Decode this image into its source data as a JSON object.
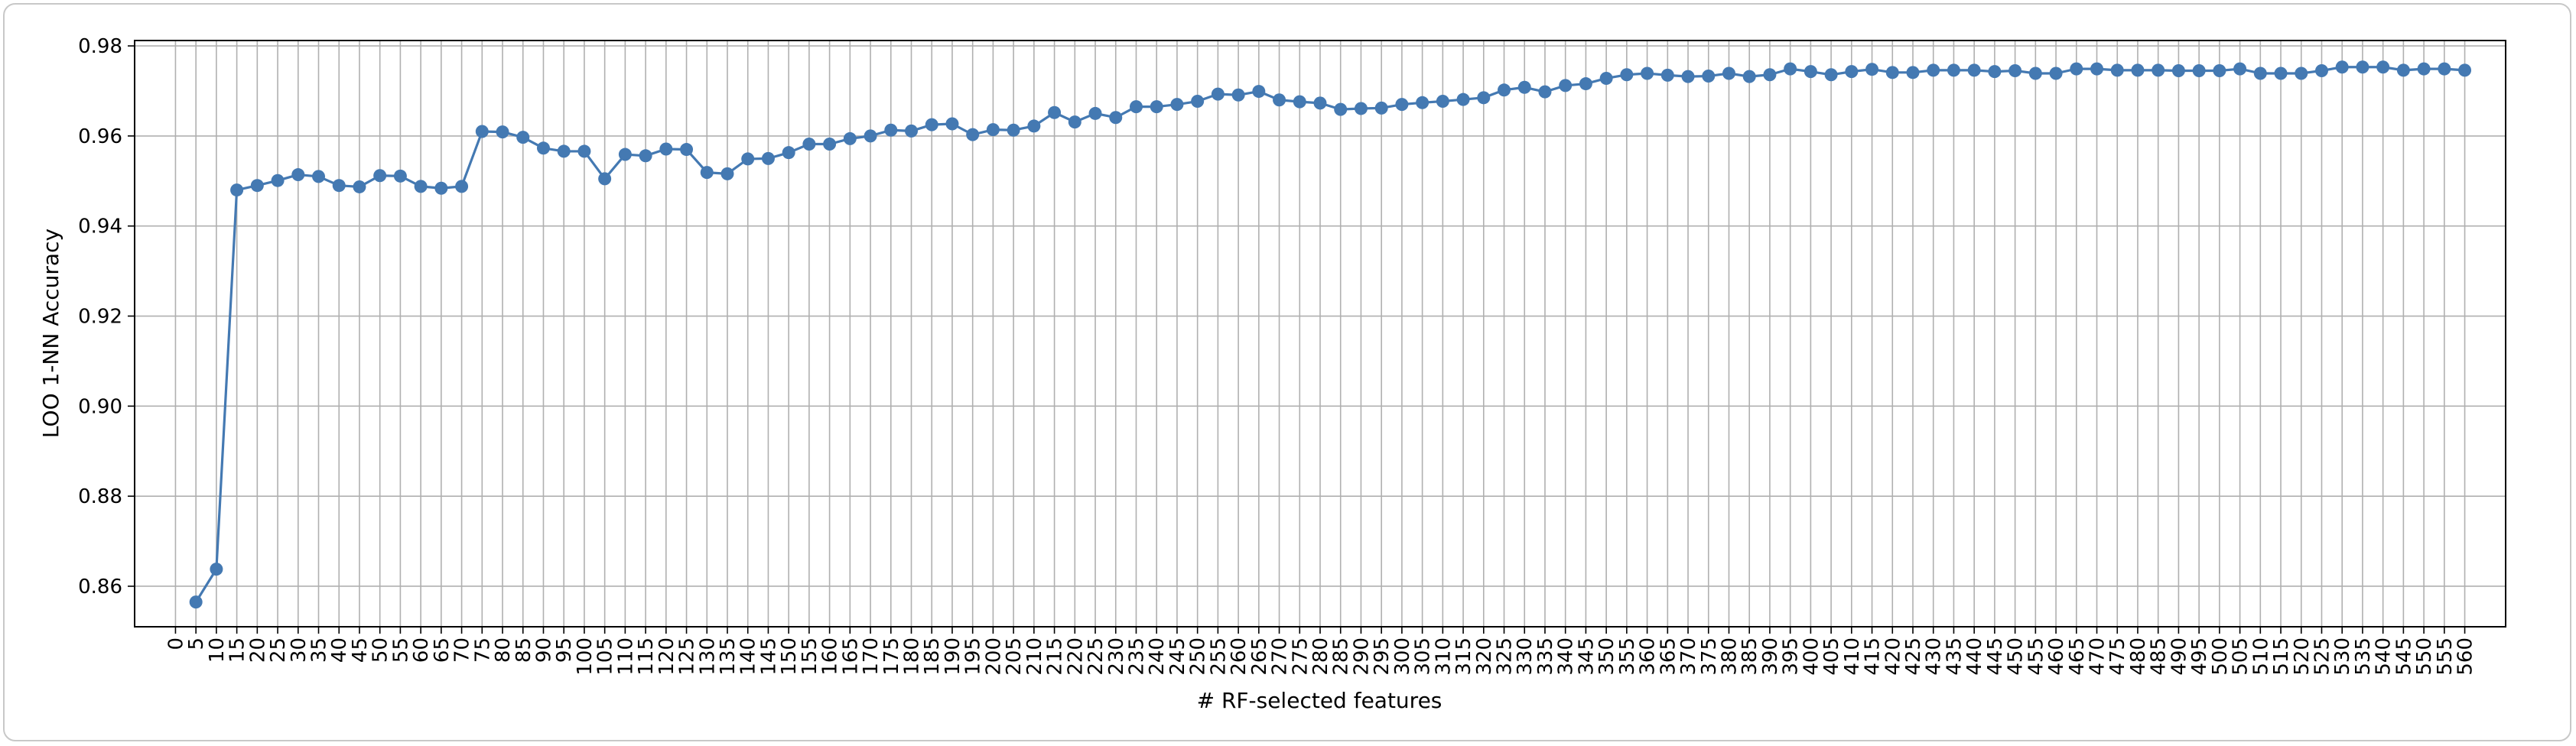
{
  "chart_data": {
    "type": "line",
    "title": "",
    "xlabel": "# RF-selected features",
    "ylabel": "LOO 1-NN Accuracy",
    "xlim": [
      -10,
      570
    ],
    "ylim": [
      0.851,
      0.9812
    ],
    "grid": true,
    "x_ticks": [
      0,
      5,
      10,
      15,
      20,
      25,
      30,
      35,
      40,
      45,
      50,
      55,
      60,
      65,
      70,
      75,
      80,
      85,
      90,
      95,
      100,
      105,
      110,
      115,
      120,
      125,
      130,
      135,
      140,
      145,
      150,
      155,
      160,
      165,
      170,
      175,
      180,
      185,
      190,
      195,
      200,
      205,
      210,
      215,
      220,
      225,
      230,
      235,
      240,
      245,
      250,
      255,
      260,
      265,
      270,
      275,
      280,
      285,
      290,
      295,
      300,
      305,
      310,
      315,
      320,
      325,
      330,
      335,
      340,
      345,
      350,
      355,
      360,
      365,
      370,
      375,
      380,
      385,
      390,
      395,
      400,
      405,
      410,
      415,
      420,
      425,
      430,
      435,
      440,
      445,
      450,
      455,
      460,
      465,
      470,
      475,
      480,
      485,
      490,
      495,
      500,
      505,
      510,
      515,
      520,
      525,
      530,
      535,
      540,
      545,
      550,
      555,
      560
    ],
    "y_ticks": [
      "0.86",
      "0.88",
      "0.90",
      "0.92",
      "0.94",
      "0.96",
      "0.98"
    ],
    "series": [
      {
        "color": "#4479b2",
        "marker": "circle",
        "x": [
          5,
          10,
          15,
          20,
          25,
          30,
          35,
          40,
          45,
          50,
          55,
          60,
          65,
          70,
          75,
          80,
          85,
          90,
          95,
          100,
          105,
          110,
          115,
          120,
          125,
          130,
          135,
          140,
          145,
          150,
          155,
          160,
          165,
          170,
          175,
          180,
          185,
          190,
          195,
          200,
          205,
          210,
          215,
          220,
          225,
          230,
          235,
          240,
          245,
          250,
          255,
          260,
          265,
          270,
          275,
          280,
          285,
          290,
          295,
          300,
          305,
          310,
          315,
          320,
          325,
          330,
          335,
          340,
          345,
          350,
          355,
          360,
          365,
          370,
          375,
          380,
          385,
          390,
          395,
          400,
          405,
          410,
          415,
          420,
          425,
          430,
          435,
          440,
          445,
          450,
          455,
          460,
          465,
          470,
          475,
          480,
          485,
          490,
          495,
          500,
          505,
          510,
          515,
          520,
          525,
          530,
          535,
          540,
          545,
          550,
          555,
          560
        ],
        "y": [
          0.8565,
          0.8638,
          0.948,
          0.949,
          0.9501,
          0.9514,
          0.951,
          0.949,
          0.9487,
          0.9512,
          0.9511,
          0.9488,
          0.9484,
          0.9488,
          0.961,
          0.9609,
          0.9597,
          0.9573,
          0.9566,
          0.9566,
          0.9505,
          0.9559,
          0.9556,
          0.9571,
          0.957,
          0.9519,
          0.9516,
          0.9549,
          0.955,
          0.9563,
          0.9582,
          0.9582,
          0.9594,
          0.96,
          0.9613,
          0.9611,
          0.9625,
          0.9627,
          0.9603,
          0.9614,
          0.9613,
          0.9622,
          0.9652,
          0.9631,
          0.965,
          0.9641,
          0.9665,
          0.9665,
          0.967,
          0.9677,
          0.9693,
          0.9691,
          0.9699,
          0.968,
          0.9676,
          0.9673,
          0.9659,
          0.9661,
          0.9662,
          0.967,
          0.9674,
          0.9677,
          0.9681,
          0.9685,
          0.9702,
          0.9708,
          0.9698,
          0.9712,
          0.9716,
          0.9728,
          0.9736,
          0.9739,
          0.9735,
          0.9732,
          0.9733,
          0.9739,
          0.9732,
          0.9736,
          0.9749,
          0.9743,
          0.9736,
          0.9743,
          0.9748,
          0.9741,
          0.9741,
          0.9746,
          0.9746,
          0.9746,
          0.9743,
          0.9745,
          0.9739,
          0.9739,
          0.9749,
          0.9749,
          0.9746,
          0.9746,
          0.9746,
          0.9745,
          0.9745,
          0.9745,
          0.9749,
          0.9739,
          0.9739,
          0.9739,
          0.9745,
          0.9753,
          0.9753,
          0.9753,
          0.9746,
          0.9749,
          0.9749,
          0.9746
        ]
      }
    ]
  }
}
